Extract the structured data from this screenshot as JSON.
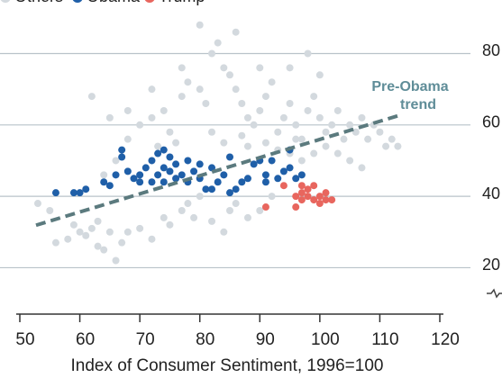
{
  "chart_data": {
    "type": "scatter",
    "xlabel": "Index of Consumer Sentiment, 1996=100",
    "xlim": [
      50,
      120
    ],
    "xticks": [
      50,
      60,
      70,
      80,
      90,
      100,
      110,
      120
    ],
    "ylim": [
      7,
      95
    ],
    "yticks": [
      20,
      40,
      60,
      80
    ],
    "grid": true,
    "series": [
      {
        "name": "Others",
        "color": "#d3d9de",
        "x": [
          53,
          55,
          56,
          58,
          59,
          60,
          61,
          62,
          63,
          63,
          64,
          65,
          66,
          67,
          68,
          70,
          72,
          74,
          75,
          77,
          78,
          79,
          80,
          82,
          84,
          85,
          86,
          88,
          90,
          92,
          64,
          66,
          68,
          70,
          72,
          74,
          75,
          76,
          77,
          78,
          80,
          81,
          82,
          83,
          84,
          85,
          86,
          87,
          88,
          89,
          90,
          91,
          92,
          93,
          94,
          95,
          96,
          97,
          98,
          99,
          100,
          101,
          102,
          103,
          104,
          105,
          106,
          107,
          108,
          109,
          110,
          111,
          112,
          113,
          95,
          97,
          99,
          101,
          103,
          105,
          107,
          100,
          98,
          95,
          90,
          86,
          80,
          77,
          72,
          68,
          62,
          65,
          73,
          88,
          91,
          93,
          96,
          82,
          84,
          87
        ],
        "values": [
          38,
          36,
          27,
          28,
          32,
          30,
          29,
          31,
          33,
          26,
          25,
          30,
          22,
          27,
          30,
          31,
          28,
          34,
          32,
          36,
          38,
          34,
          40,
          33,
          30,
          36,
          38,
          34,
          36,
          40,
          46,
          50,
          56,
          60,
          62,
          64,
          58,
          55,
          68,
          72,
          70,
          66,
          80,
          83,
          76,
          74,
          70,
          66,
          62,
          60,
          64,
          68,
          72,
          58,
          62,
          66,
          60,
          56,
          64,
          68,
          62,
          58,
          60,
          64,
          56,
          60,
          58,
          62,
          56,
          60,
          58,
          54,
          56,
          54,
          52,
          50,
          52,
          54,
          52,
          50,
          48,
          74,
          80,
          76,
          76,
          86,
          88,
          76,
          70,
          64,
          68,
          62,
          54,
          54,
          55,
          53,
          56,
          58,
          55,
          57
        ]
      },
      {
        "name": "Obama",
        "color": "#1f5fa8",
        "x": [
          56,
          59,
          60,
          61,
          64,
          65,
          66,
          67,
          67,
          68,
          69,
          70,
          70,
          71,
          72,
          72,
          73,
          73,
          74,
          74,
          75,
          75,
          76,
          76,
          77,
          78,
          79,
          80,
          81,
          82,
          82,
          83,
          84,
          85,
          86,
          87,
          88,
          89,
          90,
          91,
          91,
          92,
          93,
          94,
          95,
          95,
          96,
          97,
          85,
          78,
          74,
          80
        ],
        "values": [
          41,
          41,
          41,
          42,
          44,
          43,
          46,
          53,
          51,
          47,
          45,
          44,
          46,
          48,
          44,
          50,
          46,
          52,
          48,
          44,
          51,
          47,
          45,
          49,
          46,
          44,
          47,
          45,
          42,
          48,
          42,
          44,
          46,
          41,
          42,
          44,
          45,
          49,
          50,
          46,
          44,
          50,
          45,
          47,
          48,
          53,
          45,
          46,
          51,
          50,
          53,
          49
        ]
      },
      {
        "name": "Trump",
        "color": "#e8665e",
        "x": [
          91,
          94,
          96,
          96,
          97,
          97,
          98,
          98,
          99,
          99,
          100,
          100,
          101,
          101,
          102,
          97
        ],
        "values": [
          37,
          43,
          37,
          40,
          41,
          39,
          42,
          40,
          39,
          43,
          40,
          38,
          41,
          39,
          39,
          43
        ]
      }
    ],
    "trend": {
      "x": [
        52.7,
        113.5
      ],
      "y": [
        31.9,
        62.8
      ],
      "color": "#5b7a7e",
      "label": [
        "Pre-Obama",
        "trend"
      ]
    }
  }
}
